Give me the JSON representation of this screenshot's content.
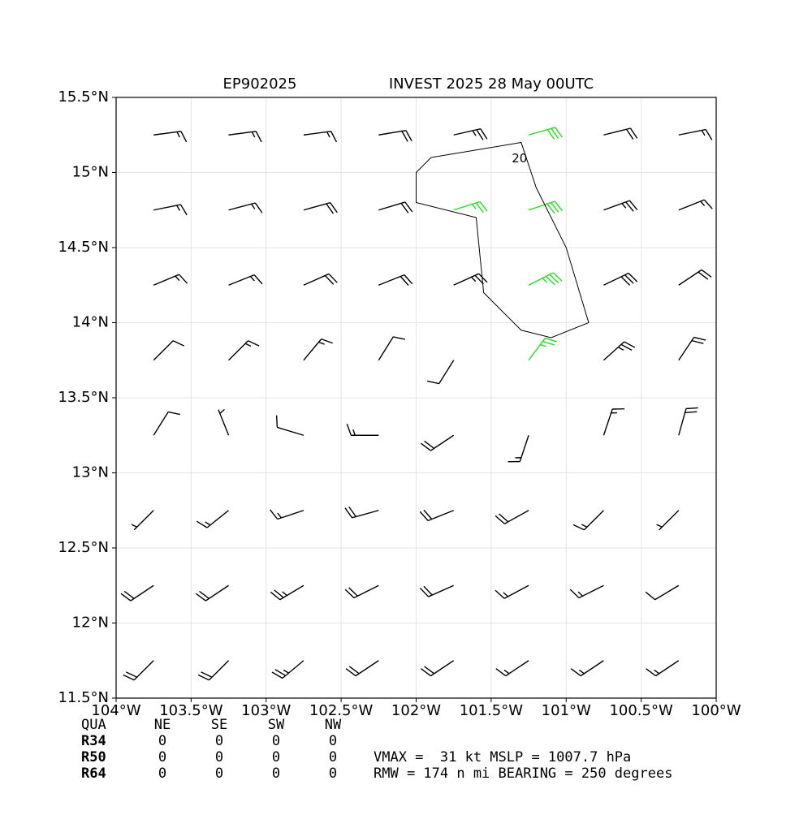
{
  "chart_data": {
    "type": "barbs",
    "title_left": "EP902025",
    "title": "INVEST 2025 28 May 00UTC",
    "xlim": [
      -104,
      -100
    ],
    "ylim": [
      11.5,
      15.5
    ],
    "xticks": [
      {
        "value": -104,
        "label": "104°W"
      },
      {
        "value": -103.5,
        "label": "103.5°W"
      },
      {
        "value": -103,
        "label": "103°W"
      },
      {
        "value": -102.5,
        "label": "102.5°W"
      },
      {
        "value": -102,
        "label": "102°W"
      },
      {
        "value": -101.5,
        "label": "101.5°W"
      },
      {
        "value": -101,
        "label": "101°W"
      },
      {
        "value": -100.5,
        "label": "100.5°W"
      },
      {
        "value": -100,
        "label": "100°W"
      }
    ],
    "yticks": [
      {
        "value": 11.5,
        "label": "11.5°N"
      },
      {
        "value": 12,
        "label": "12°N"
      },
      {
        "value": 12.5,
        "label": "12.5°N"
      },
      {
        "value": 13,
        "label": "13°N"
      },
      {
        "value": 13.5,
        "label": "13.5°N"
      },
      {
        "value": 14,
        "label": "14°N"
      },
      {
        "value": 14.5,
        "label": "14.5°N"
      },
      {
        "value": 15,
        "label": "15°N"
      },
      {
        "value": 15.5,
        "label": "15.5°N"
      }
    ],
    "grid": true,
    "series": [
      {
        "color": "#000000",
        "points": [
          [
            -103.75,
            15.25,
            -15,
            -2
          ],
          [
            -103.25,
            15.25,
            -15,
            -2
          ],
          [
            -102.75,
            15.25,
            -15,
            -2
          ],
          [
            -102.25,
            15.25,
            -18,
            -3
          ],
          [
            -101.75,
            15.25,
            -22,
            -5
          ],
          [
            -100.75,
            15.25,
            -20,
            -5
          ],
          [
            -100.25,
            15.25,
            -15,
            -3
          ],
          [
            -103.75,
            14.75,
            -15,
            -3
          ],
          [
            -103.25,
            14.75,
            -15,
            -4
          ],
          [
            -102.75,
            14.75,
            -18,
            -5
          ],
          [
            -102.25,
            14.75,
            -20,
            -6
          ],
          [
            -100.75,
            14.75,
            -22,
            -8
          ],
          [
            -100.25,
            14.75,
            -15,
            -6
          ],
          [
            -103.75,
            14.25,
            -12,
            -5
          ],
          [
            -103.25,
            14.25,
            -15,
            -6
          ],
          [
            -102.75,
            14.25,
            -18,
            -8
          ],
          [
            -102.25,
            14.25,
            -20,
            -8
          ],
          [
            -101.75,
            14.25,
            -22,
            -10
          ],
          [
            -100.75,
            14.25,
            -25,
            -12
          ],
          [
            -100.25,
            14.25,
            -15,
            -10
          ],
          [
            -103.75,
            13.75,
            -8,
            -8
          ],
          [
            -103.25,
            13.75,
            -10,
            -10
          ],
          [
            -102.75,
            13.75,
            -10,
            -12
          ],
          [
            -102.25,
            13.75,
            -5,
            -8
          ],
          [
            -101.75,
            13.75,
            5,
            8
          ],
          [
            -100.75,
            13.75,
            -20,
            -18
          ],
          [
            -100.25,
            13.75,
            -10,
            -15
          ],
          [
            -103.75,
            13.25,
            -5,
            -8
          ],
          [
            -103.25,
            13.25,
            2,
            -5
          ],
          [
            -102.75,
            13.25,
            10,
            -3
          ],
          [
            -102.25,
            13.25,
            15,
            0
          ],
          [
            -101.75,
            13.25,
            15,
            10
          ],
          [
            -101.25,
            13.25,
            5,
            15
          ],
          [
            -100.75,
            13.25,
            -5,
            -15
          ],
          [
            -100.25,
            13.25,
            -5,
            -18
          ],
          [
            -103.75,
            12.75,
            5,
            5
          ],
          [
            -103.25,
            12.75,
            10,
            8
          ],
          [
            -102.75,
            12.75,
            15,
            5
          ],
          [
            -102.25,
            12.75,
            18,
            5
          ],
          [
            -101.75,
            12.75,
            20,
            8
          ],
          [
            -101.25,
            12.75,
            18,
            10
          ],
          [
            -100.75,
            12.75,
            10,
            10
          ],
          [
            -100.25,
            12.75,
            5,
            5
          ],
          [
            -103.75,
            12.25,
            15,
            10
          ],
          [
            -103.25,
            12.25,
            18,
            12
          ],
          [
            -102.75,
            12.25,
            20,
            12
          ],
          [
            -102.25,
            12.25,
            20,
            10
          ],
          [
            -101.75,
            12.25,
            18,
            8
          ],
          [
            -101.25,
            12.25,
            15,
            8
          ],
          [
            -100.75,
            12.25,
            12,
            6
          ],
          [
            -100.25,
            12.25,
            10,
            6
          ],
          [
            -103.75,
            11.75,
            15,
            15
          ],
          [
            -103.25,
            11.75,
            15,
            15
          ],
          [
            -102.75,
            11.75,
            18,
            15
          ],
          [
            -102.25,
            11.75,
            18,
            12
          ],
          [
            -101.75,
            11.75,
            15,
            10
          ],
          [
            -101.25,
            11.75,
            12,
            8
          ],
          [
            -100.75,
            11.75,
            12,
            8
          ],
          [
            -100.25,
            11.75,
            12,
            8
          ]
        ]
      },
      {
        "color": "#22dd22",
        "points": [
          [
            -101.25,
            15.25,
            -28,
            -8
          ],
          [
            -101.75,
            14.75,
            -25,
            -8
          ],
          [
            -101.25,
            14.75,
            -30,
            -10
          ],
          [
            -101.25,
            14.25,
            -30,
            -15
          ],
          [
            -101.25,
            13.75,
            -15,
            -20
          ]
        ]
      }
    ],
    "contour": {
      "label": "20",
      "lon": [
        -101.9,
        -101.3,
        -101.2,
        -101.0,
        -100.85,
        -101.1,
        -101.3,
        -101.55,
        -101.6,
        -102.0,
        -102.0,
        -101.9
      ],
      "lat": [
        15.1,
        15.2,
        14.9,
        14.5,
        14.0,
        13.9,
        13.95,
        14.2,
        14.7,
        14.8,
        15.0,
        15.1
      ]
    },
    "table": {
      "header": [
        "QUA",
        "NE",
        "SE",
        "SW",
        "NW"
      ],
      "rows": [
        [
          "R34",
          0,
          0,
          0,
          0
        ],
        [
          "R50",
          0,
          0,
          0,
          0
        ],
        [
          "R64",
          0,
          0,
          0,
          0
        ]
      ]
    },
    "notes": [
      "VMAX =  31 kt MSLP = 1007.7 hPa",
      "RMW = 174 n mi BEARING = 250 degrees"
    ]
  }
}
